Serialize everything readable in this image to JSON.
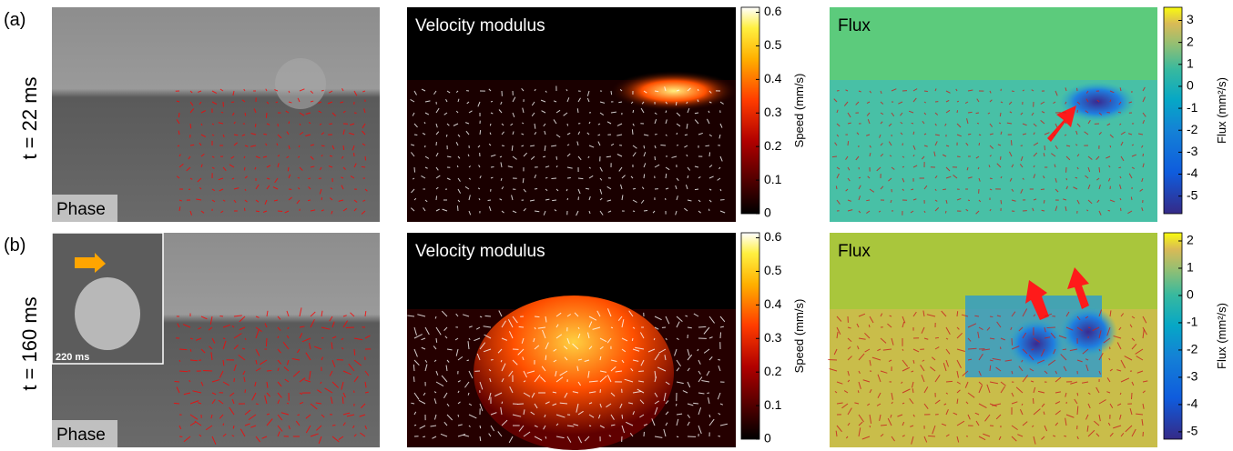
{
  "rows": [
    {
      "panel_label": "(a)",
      "time_label": "t = 22 ms",
      "phase_label": "Phase",
      "velocity": {
        "title": "Velocity modulus",
        "colorbar": {
          "label": "Speed (mm/s)",
          "lim": [
            0,
            0.615
          ],
          "ticks": [
            0,
            0.1,
            0.2,
            0.3,
            0.4,
            0.5,
            0.6
          ]
        }
      },
      "flux": {
        "title": "Flux",
        "colorbar": {
          "label": "Flux (mm²/s)",
          "lim": [
            -5.8,
            3.6
          ],
          "ticks": [
            -5,
            -4,
            -3,
            -2,
            -1,
            0,
            1,
            2,
            3
          ]
        }
      }
    },
    {
      "panel_label": "(b)",
      "time_label": "t = 160 ms",
      "phase_label": "Phase",
      "inset_label": "220 ms",
      "velocity": {
        "title": "Velocity modulus",
        "colorbar": {
          "label": "Speed (mm/s)",
          "lim": [
            0,
            0.615
          ],
          "ticks": [
            0,
            0.1,
            0.2,
            0.3,
            0.4,
            0.5,
            0.6
          ]
        }
      },
      "flux": {
        "title": "Flux",
        "colorbar": {
          "label": "Flux (mm²/s)",
          "lim": [
            -5.27,
            2.3
          ],
          "ticks": [
            -5,
            -4,
            -3,
            -2,
            -1,
            0,
            1,
            2
          ]
        }
      }
    }
  ]
}
